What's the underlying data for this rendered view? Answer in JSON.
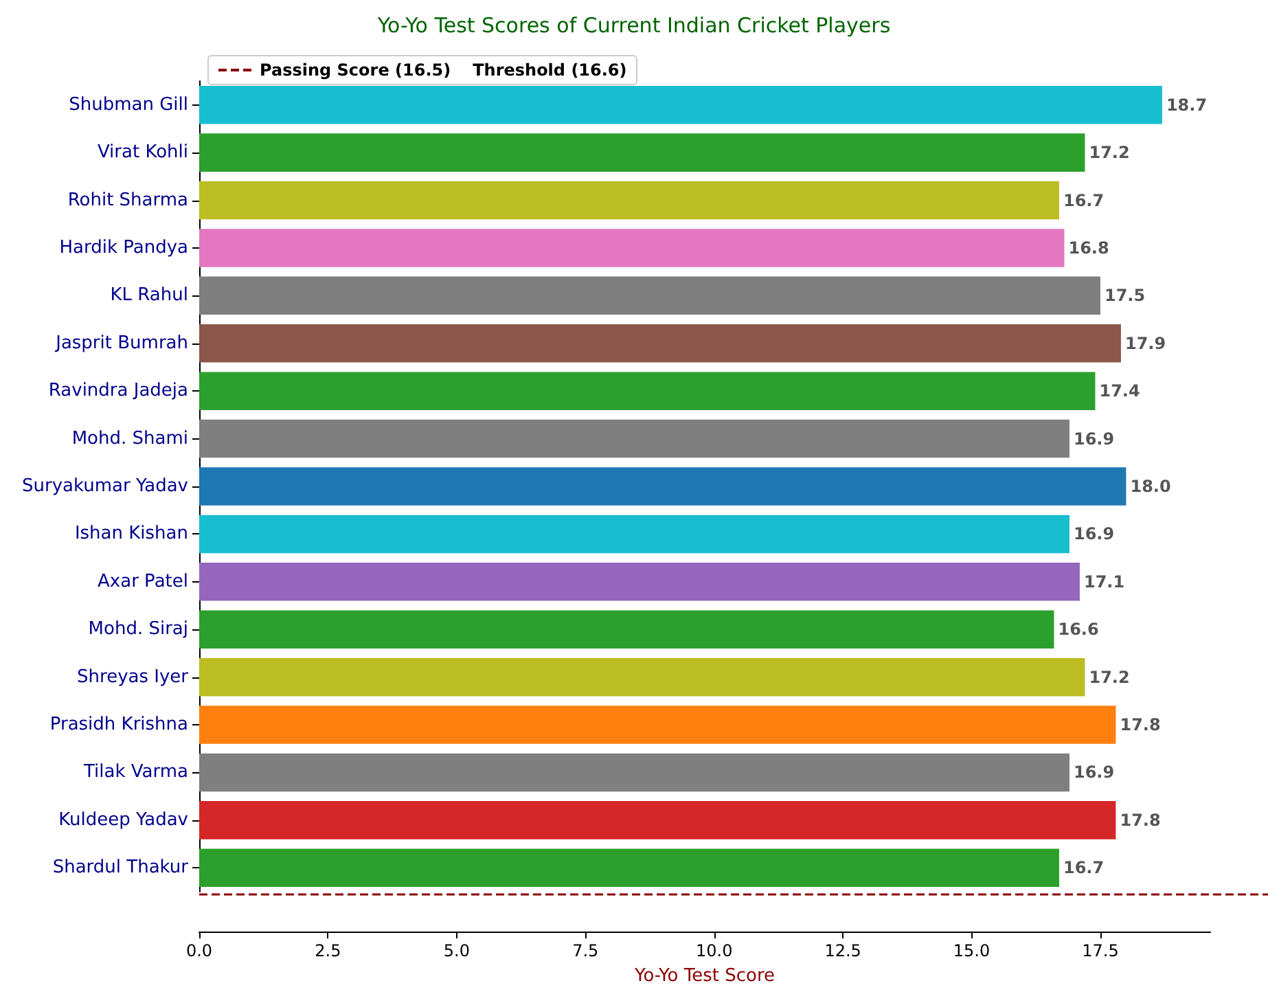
{
  "chart_data": {
    "type": "bar",
    "orientation": "horizontal",
    "title": "Yo-Yo Test Scores of Current Indian Cricket Players",
    "xlabel": "Yo-Yo Test Score",
    "categories": [
      "Shubman Gill",
      "Virat Kohli",
      "Rohit Sharma",
      "Hardik Pandya",
      "KL Rahul",
      "Jasprit Bumrah",
      "Ravindra Jadeja",
      "Mohd. Shami",
      "Suryakumar Yadav",
      "Ishan Kishan",
      "Axar Patel",
      "Mohd. Siraj",
      "Shreyas Iyer",
      "Prasidh Krishna",
      "Tilak Varma",
      "Kuldeep Yadav",
      "Shardul Thakur"
    ],
    "values": [
      18.7,
      17.2,
      16.7,
      16.8,
      17.5,
      17.9,
      17.4,
      16.9,
      18.0,
      16.9,
      17.1,
      16.6,
      17.2,
      17.8,
      16.9,
      17.8,
      16.7
    ],
    "value_labels": [
      "18.7",
      "17.2",
      "16.7",
      "16.8",
      "17.5",
      "17.9",
      "17.4",
      "16.9",
      "18.0",
      "16.9",
      "17.1",
      "16.6",
      "17.2",
      "17.8",
      "16.9",
      "17.8",
      "16.7"
    ],
    "colors": [
      "#17becf",
      "#2ca02c",
      "#bcbd22",
      "#e377c2",
      "#7f7f7f",
      "#8c564b",
      "#2ca02c",
      "#7f7f7f",
      "#1f77b4",
      "#17becf",
      "#9467bd",
      "#2ca02c",
      "#bcbd22",
      "#ff7f0e",
      "#7f7f7f",
      "#d62728",
      "#2ca02c"
    ],
    "xlim": [
      0,
      19.635
    ],
    "xticks": [
      {
        "value": 0,
        "label": "0.0"
      },
      {
        "value": 2.5,
        "label": "2.5"
      },
      {
        "value": 5,
        "label": "5.0"
      },
      {
        "value": 7.5,
        "label": "7.5"
      },
      {
        "value": 10,
        "label": "10.0"
      },
      {
        "value": 12.5,
        "label": "12.5"
      },
      {
        "value": 15,
        "label": "15.0"
      },
      {
        "value": 17.5,
        "label": "17.5"
      }
    ],
    "annotations": [
      "Passing Score (16.5)",
      "Threshold (16.6)"
    ]
  }
}
